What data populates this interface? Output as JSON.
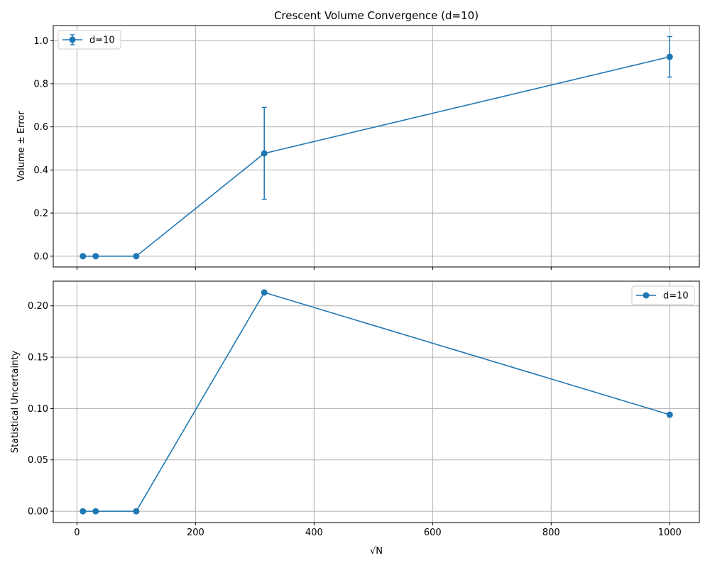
{
  "chart_data": [
    {
      "type": "line",
      "title": "Crescent Volume Convergence (d=10)",
      "xlabel": "",
      "ylabel": "Volume ± Error",
      "x": [
        10,
        31.6,
        100,
        316,
        1000
      ],
      "series": [
        {
          "name": "d=10",
          "values": [
            0.0,
            0.0,
            0.0,
            0.477,
            0.925
          ],
          "errors": [
            0.0,
            0.0,
            0.0,
            0.213,
            0.094
          ],
          "color": "#1f77b4",
          "marker": "circle",
          "error_bars": true
        }
      ],
      "xlim": [
        -40,
        1050
      ],
      "ylim": [
        -0.05,
        1.07
      ],
      "xticks": [
        0,
        200,
        400,
        600,
        800,
        1000
      ],
      "xtick_labels_visible": false,
      "yticks": [
        0.0,
        0.2,
        0.4,
        0.6,
        0.8,
        1.0
      ],
      "ytick_labels": [
        "0.0",
        "0.2",
        "0.4",
        "0.6",
        "0.8",
        "1.0"
      ],
      "grid": true,
      "legend_position": "top-left"
    },
    {
      "type": "line",
      "title": "",
      "xlabel": "√N",
      "ylabel": "Statistical Uncertainty",
      "x": [
        10,
        31.6,
        100,
        316,
        1000
      ],
      "series": [
        {
          "name": "d=10",
          "values": [
            0.0,
            0.0,
            0.0,
            0.213,
            0.094
          ],
          "color": "#1f77b4",
          "marker": "circle",
          "error_bars": false
        }
      ],
      "xlim": [
        -40,
        1050
      ],
      "ylim": [
        -0.011,
        0.224
      ],
      "xticks": [
        0,
        200,
        400,
        600,
        800,
        1000
      ],
      "xtick_labels": [
        "0",
        "200",
        "400",
        "600",
        "800",
        "1000"
      ],
      "xtick_labels_visible": true,
      "yticks": [
        0.0,
        0.05,
        0.1,
        0.15,
        0.2
      ],
      "ytick_labels": [
        "0.00",
        "0.05",
        "0.10",
        "0.15",
        "0.20"
      ],
      "grid": true,
      "legend_position": "top-right"
    }
  ]
}
